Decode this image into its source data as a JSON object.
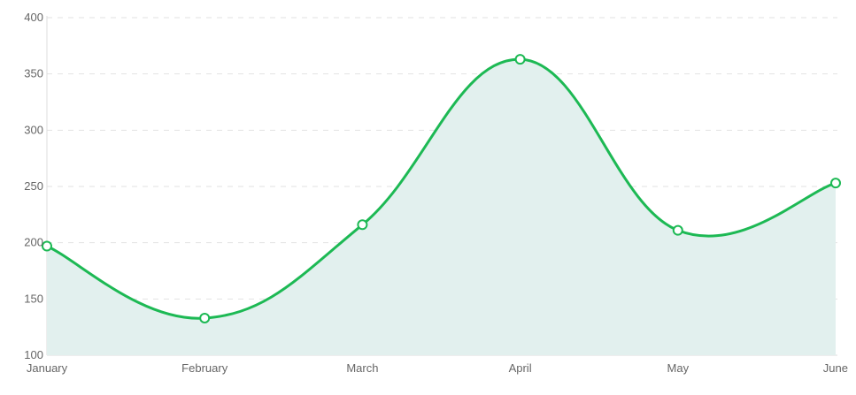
{
  "chart_data": {
    "type": "area",
    "title": "",
    "xlabel": "",
    "ylabel": "",
    "categories": [
      "January",
      "February",
      "March",
      "April",
      "May",
      "June"
    ],
    "series": [
      {
        "values": [
          197,
          133,
          216,
          363,
          211,
          253
        ]
      }
    ],
    "ylim": [
      100,
      400
    ],
    "yticks": [
      "100",
      "150",
      "200",
      "250",
      "300",
      "350",
      "400"
    ],
    "grid": true,
    "grid_style": "dashed horizontal",
    "smooth": true,
    "colors": {
      "line": "#1db954",
      "fill": "#e2f0ee",
      "marker_fill": "#ffffff"
    }
  }
}
